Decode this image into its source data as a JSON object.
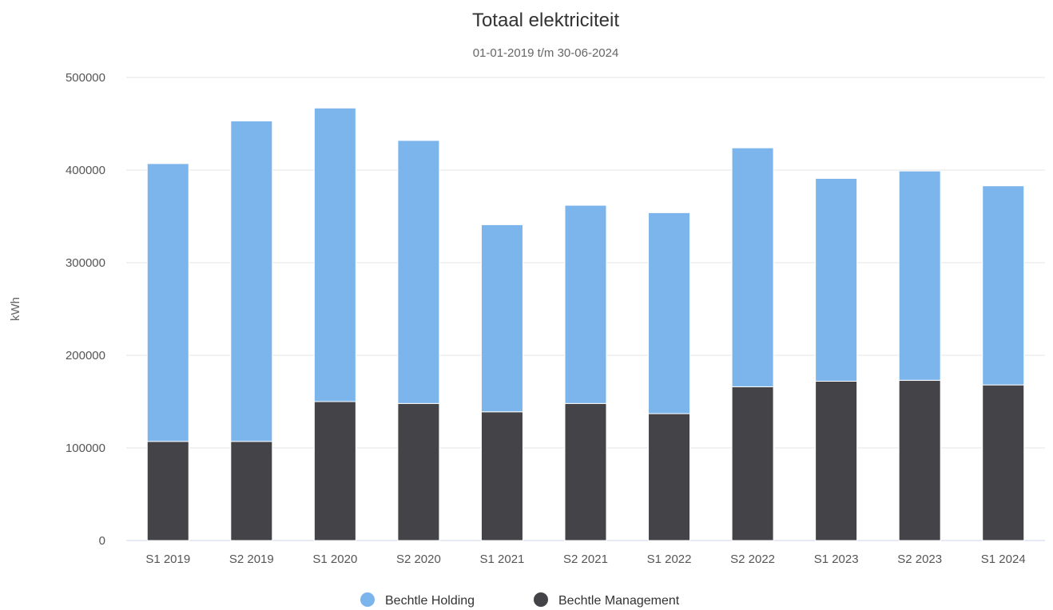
{
  "chart_data": {
    "type": "bar",
    "stacked": true,
    "title": "Totaal elektriciteit",
    "subtitle": "01-01-2019 t/m 30-06-2024",
    "ylabel": "kWh",
    "xlabel": "",
    "ylim": [
      0,
      500000
    ],
    "yticks": [
      0,
      100000,
      200000,
      300000,
      400000,
      500000
    ],
    "grid": true,
    "legend_position": "bottom-center",
    "categories": [
      "S1 2019",
      "S2 2019",
      "S1 2020",
      "S2 2020",
      "S1 2021",
      "S2 2021",
      "S1 2022",
      "S2 2022",
      "S1 2023",
      "S2 2023",
      "S1 2024"
    ],
    "series": [
      {
        "name": "Bechtle Holding",
        "color": "#7cb5ec",
        "values": [
          300000,
          346000,
          317000,
          284000,
          202000,
          214000,
          217000,
          258000,
          219000,
          226000,
          215000
        ]
      },
      {
        "name": "Bechtle Management",
        "color": "#434348",
        "values": [
          107000,
          107000,
          150000,
          148000,
          139000,
          148000,
          137000,
          166000,
          172000,
          173000,
          168000
        ]
      }
    ]
  }
}
